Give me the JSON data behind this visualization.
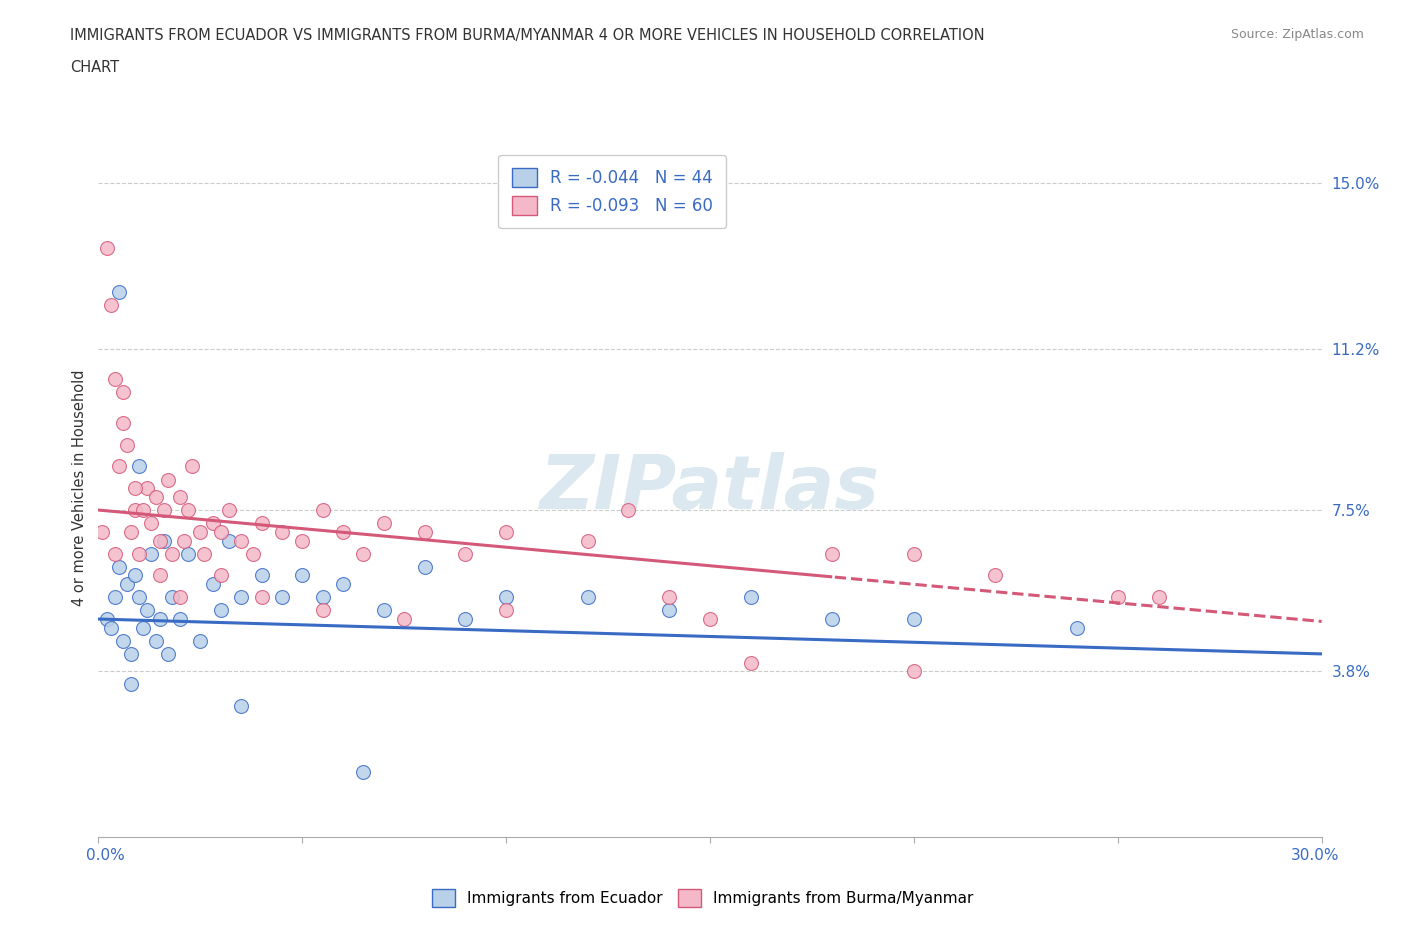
{
  "title_line1": "IMMIGRANTS FROM ECUADOR VS IMMIGRANTS FROM BURMA/MYANMAR 4 OR MORE VEHICLES IN HOUSEHOLD CORRELATION",
  "title_line2": "CHART",
  "source": "Source: ZipAtlas.com",
  "xlim": [
    0.0,
    30.0
  ],
  "ylim": [
    0.0,
    16.0
  ],
  "ecuador_R": -0.044,
  "ecuador_N": 44,
  "burma_R": -0.093,
  "burma_N": 60,
  "ecuador_color": "#b8d0e8",
  "burma_color": "#f4b8c8",
  "ecuador_line_color": "#3a6bc4",
  "burma_line_color": "#d45878",
  "ylabel_ticks": [
    3.8,
    7.5,
    11.2,
    15.0
  ],
  "background_color": "#ffffff",
  "grid_color": "#cccccc",
  "watermark_color": "#dce8f0",
  "ec_x": [
    0.2,
    0.3,
    0.4,
    0.5,
    0.6,
    0.7,
    0.8,
    0.9,
    1.0,
    1.1,
    1.2,
    1.3,
    1.4,
    1.5,
    1.6,
    1.7,
    1.8,
    2.0,
    2.2,
    2.5,
    2.8,
    3.0,
    3.2,
    3.5,
    4.0,
    4.5,
    5.0,
    5.5,
    6.0,
    7.0,
    8.0,
    9.0,
    10.0,
    12.0,
    14.0,
    16.0,
    18.0,
    20.0,
    24.0,
    0.5,
    0.8,
    1.0,
    3.5,
    6.5
  ],
  "ec_y": [
    5.0,
    4.8,
    5.5,
    6.2,
    4.5,
    5.8,
    4.2,
    6.0,
    5.5,
    4.8,
    5.2,
    6.5,
    4.5,
    5.0,
    6.8,
    4.2,
    5.5,
    5.0,
    6.5,
    4.5,
    5.8,
    5.2,
    6.8,
    5.5,
    6.0,
    5.5,
    6.0,
    5.5,
    5.8,
    5.2,
    6.2,
    5.0,
    5.5,
    5.5,
    5.2,
    5.5,
    5.0,
    5.0,
    4.8,
    12.5,
    3.5,
    8.5,
    3.0,
    1.5
  ],
  "bm_x": [
    0.1,
    0.2,
    0.3,
    0.4,
    0.5,
    0.6,
    0.7,
    0.8,
    0.9,
    1.0,
    1.1,
    1.2,
    1.3,
    1.4,
    1.5,
    1.6,
    1.7,
    1.8,
    2.0,
    2.1,
    2.2,
    2.3,
    2.5,
    2.6,
    2.8,
    3.0,
    3.2,
    3.5,
    3.8,
    4.0,
    4.5,
    5.0,
    5.5,
    6.0,
    6.5,
    7.0,
    8.0,
    9.0,
    10.0,
    12.0,
    13.0,
    14.0,
    16.0,
    18.0,
    20.0,
    22.0,
    25.0,
    0.4,
    0.6,
    0.9,
    1.5,
    2.0,
    3.0,
    4.0,
    5.5,
    7.5,
    10.0,
    15.0,
    20.0,
    26.0
  ],
  "bm_y": [
    7.0,
    13.5,
    12.2,
    6.5,
    8.5,
    10.2,
    9.0,
    7.0,
    7.5,
    6.5,
    7.5,
    8.0,
    7.2,
    7.8,
    6.8,
    7.5,
    8.2,
    6.5,
    7.8,
    6.8,
    7.5,
    8.5,
    7.0,
    6.5,
    7.2,
    7.0,
    7.5,
    6.8,
    6.5,
    7.2,
    7.0,
    6.8,
    7.5,
    7.0,
    6.5,
    7.2,
    7.0,
    6.5,
    7.0,
    6.8,
    7.5,
    5.5,
    4.0,
    6.5,
    6.5,
    6.0,
    5.5,
    10.5,
    9.5,
    8.0,
    6.0,
    5.5,
    6.0,
    5.5,
    5.2,
    5.0,
    5.2,
    5.0,
    3.8,
    5.5
  ],
  "ec_trend_start": 5.0,
  "ec_trend_end": 4.2,
  "bm_trend_start": 7.5,
  "bm_trend_end": 5.2
}
